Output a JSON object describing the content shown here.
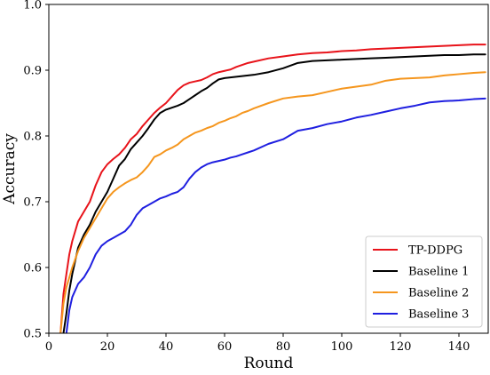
{
  "chart_data": {
    "type": "line",
    "title": "",
    "xlabel": "Round",
    "ylabel": "Accuracy",
    "xlim": [
      0,
      150
    ],
    "ylim": [
      0.5,
      1.0
    ],
    "xticks": [
      0,
      20,
      40,
      60,
      80,
      100,
      120,
      140
    ],
    "yticks": [
      0.5,
      0.6,
      0.7,
      0.8,
      0.9,
      1.0
    ],
    "grid": false,
    "legend_position": "bottom-right",
    "series": [
      {
        "name": "TP-DDPG",
        "color": "#e8131a",
        "x": [
          4,
          5,
          6,
          7,
          8,
          10,
          12,
          14,
          16,
          18,
          20,
          22,
          24,
          26,
          28,
          30,
          32,
          34,
          36,
          38,
          40,
          42,
          44,
          46,
          48,
          50,
          52,
          54,
          56,
          58,
          60,
          62,
          64,
          66,
          68,
          70,
          75,
          80,
          85,
          90,
          95,
          100,
          105,
          110,
          115,
          120,
          125,
          130,
          135,
          140,
          145,
          149
        ],
        "y": [
          0.5,
          0.56,
          0.59,
          0.62,
          0.64,
          0.67,
          0.685,
          0.7,
          0.725,
          0.745,
          0.757,
          0.765,
          0.772,
          0.782,
          0.795,
          0.803,
          0.815,
          0.825,
          0.835,
          0.843,
          0.85,
          0.86,
          0.87,
          0.877,
          0.881,
          0.883,
          0.885,
          0.889,
          0.894,
          0.897,
          0.899,
          0.901,
          0.905,
          0.908,
          0.911,
          0.913,
          0.918,
          0.921,
          0.924,
          0.926,
          0.927,
          0.929,
          0.93,
          0.932,
          0.933,
          0.934,
          0.935,
          0.936,
          0.937,
          0.938,
          0.939,
          0.939
        ]
      },
      {
        "name": "Baseline 1",
        "color": "#000000",
        "x": [
          5,
          6,
          7,
          8,
          10,
          12,
          14,
          16,
          18,
          20,
          22,
          24,
          26,
          28,
          30,
          32,
          34,
          36,
          38,
          40,
          42,
          44,
          46,
          48,
          50,
          52,
          54,
          56,
          58,
          60,
          62,
          64,
          66,
          68,
          70,
          75,
          80,
          85,
          90,
          95,
          100,
          105,
          110,
          115,
          120,
          125,
          130,
          135,
          140,
          145,
          149
        ],
        "y": [
          0.5,
          0.53,
          0.565,
          0.59,
          0.63,
          0.65,
          0.665,
          0.685,
          0.7,
          0.715,
          0.735,
          0.755,
          0.765,
          0.78,
          0.79,
          0.8,
          0.812,
          0.825,
          0.835,
          0.84,
          0.843,
          0.846,
          0.85,
          0.856,
          0.862,
          0.868,
          0.873,
          0.88,
          0.886,
          0.888,
          0.889,
          0.89,
          0.891,
          0.892,
          0.893,
          0.897,
          0.903,
          0.911,
          0.914,
          0.915,
          0.916,
          0.917,
          0.918,
          0.919,
          0.92,
          0.921,
          0.922,
          0.923,
          0.923,
          0.924,
          0.924
        ]
      },
      {
        "name": "Baseline 2",
        "color": "#f5961e",
        "x": [
          4,
          5,
          6,
          7,
          8,
          10,
          12,
          14,
          16,
          18,
          20,
          22,
          24,
          26,
          28,
          30,
          32,
          34,
          36,
          38,
          40,
          42,
          44,
          46,
          48,
          50,
          52,
          54,
          56,
          58,
          60,
          62,
          64,
          66,
          68,
          70,
          75,
          80,
          85,
          90,
          95,
          100,
          105,
          110,
          115,
          120,
          125,
          130,
          135,
          140,
          145,
          149
        ],
        "y": [
          0.5,
          0.545,
          0.57,
          0.585,
          0.6,
          0.625,
          0.645,
          0.66,
          0.675,
          0.69,
          0.705,
          0.715,
          0.722,
          0.728,
          0.733,
          0.737,
          0.745,
          0.755,
          0.768,
          0.772,
          0.778,
          0.782,
          0.787,
          0.795,
          0.8,
          0.805,
          0.808,
          0.812,
          0.815,
          0.82,
          0.823,
          0.827,
          0.83,
          0.835,
          0.838,
          0.842,
          0.85,
          0.857,
          0.86,
          0.862,
          0.867,
          0.872,
          0.875,
          0.878,
          0.884,
          0.887,
          0.888,
          0.889,
          0.892,
          0.894,
          0.896,
          0.897
        ]
      },
      {
        "name": "Baseline 3",
        "color": "#1f1fe0",
        "x": [
          6,
          7,
          8,
          10,
          12,
          14,
          16,
          18,
          20,
          22,
          24,
          26,
          28,
          30,
          32,
          34,
          36,
          38,
          40,
          42,
          44,
          46,
          48,
          50,
          52,
          54,
          56,
          58,
          60,
          62,
          64,
          66,
          68,
          70,
          75,
          80,
          85,
          90,
          95,
          100,
          105,
          110,
          115,
          120,
          125,
          130,
          135,
          140,
          145,
          149
        ],
        "y": [
          0.5,
          0.535,
          0.555,
          0.575,
          0.585,
          0.6,
          0.62,
          0.633,
          0.64,
          0.645,
          0.65,
          0.655,
          0.665,
          0.68,
          0.69,
          0.695,
          0.7,
          0.705,
          0.708,
          0.712,
          0.715,
          0.722,
          0.735,
          0.745,
          0.752,
          0.757,
          0.76,
          0.762,
          0.764,
          0.767,
          0.769,
          0.772,
          0.775,
          0.778,
          0.788,
          0.795,
          0.808,
          0.812,
          0.818,
          0.822,
          0.828,
          0.832,
          0.837,
          0.842,
          0.846,
          0.851,
          0.853,
          0.854,
          0.856,
          0.857
        ]
      }
    ]
  }
}
